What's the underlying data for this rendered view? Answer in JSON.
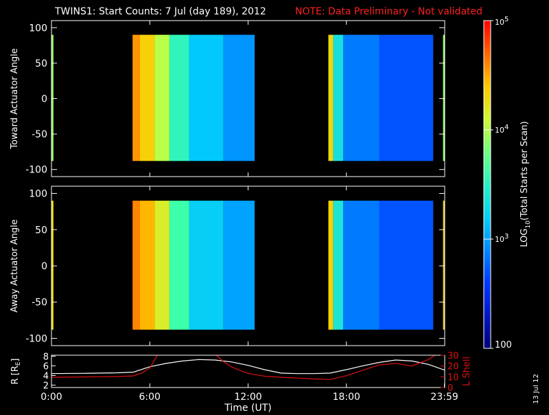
{
  "header": {
    "title": "TWINS1: Start Counts:  7 Jul (day 189), 2012",
    "note": "NOTE: Data Preliminary - Not validated"
  },
  "stamp": "13 Jul 12",
  "colors": {
    "background": "#000000",
    "axes": "#ffffff",
    "note": "#ff2020",
    "orbit_r": "#ffffff",
    "orbit_l": "#e01010"
  },
  "chart_data": [
    {
      "type": "heatmap",
      "title": "",
      "ylabel": "Toward Actuator Angle",
      "ylim": [
        -110,
        110
      ],
      "yticks": [
        100,
        50,
        0,
        -50,
        -100
      ],
      "xlim": [
        0,
        24
      ],
      "color_scale": "log",
      "zlim": [
        100,
        100000
      ],
      "columns": [
        {
          "x0": 0.0,
          "x1": 0.12,
          "log10_counts": 3.9
        },
        {
          "x0": 4.95,
          "x1": 5.4,
          "log10_counts": 4.55
        },
        {
          "x0": 5.4,
          "x1": 6.3,
          "log10_counts": 4.35
        },
        {
          "x0": 6.3,
          "x1": 7.2,
          "log10_counts": 4.0
        },
        {
          "x0": 7.2,
          "x1": 8.4,
          "log10_counts": 3.55
        },
        {
          "x0": 8.4,
          "x1": 10.5,
          "log10_counts": 3.15
        },
        {
          "x0": 10.5,
          "x1": 12.4,
          "log10_counts": 2.95
        },
        {
          "x0": 16.9,
          "x1": 17.2,
          "log10_counts": 4.3
        },
        {
          "x0": 17.2,
          "x1": 17.8,
          "log10_counts": 3.35
        },
        {
          "x0": 17.8,
          "x1": 20.0,
          "log10_counts": 2.85
        },
        {
          "x0": 20.0,
          "x1": 23.3,
          "log10_counts": 2.7
        },
        {
          "x0": 23.9,
          "x1": 24.0,
          "log10_counts": 3.9
        }
      ],
      "angle_range": [
        -88,
        90
      ]
    },
    {
      "type": "heatmap",
      "title": "",
      "ylabel": "Away Actuator Angle",
      "ylim": [
        -110,
        110
      ],
      "yticks": [
        100,
        50,
        0,
        -50,
        -100
      ],
      "xlim": [
        0,
        24
      ],
      "color_scale": "log",
      "zlim": [
        100,
        100000
      ],
      "columns": [
        {
          "x0": 0.0,
          "x1": 0.12,
          "log10_counts": 4.3
        },
        {
          "x0": 4.95,
          "x1": 5.4,
          "log10_counts": 4.6
        },
        {
          "x0": 5.4,
          "x1": 6.3,
          "log10_counts": 4.45
        },
        {
          "x0": 6.3,
          "x1": 7.2,
          "log10_counts": 4.15
        },
        {
          "x0": 7.2,
          "x1": 8.4,
          "log10_counts": 3.65
        },
        {
          "x0": 8.4,
          "x1": 10.5,
          "log10_counts": 3.2
        },
        {
          "x0": 10.5,
          "x1": 12.4,
          "log10_counts": 3.0
        },
        {
          "x0": 16.9,
          "x1": 17.2,
          "log10_counts": 4.35
        },
        {
          "x0": 17.2,
          "x1": 17.8,
          "log10_counts": 3.4
        },
        {
          "x0": 17.8,
          "x1": 20.0,
          "log10_counts": 2.85
        },
        {
          "x0": 20.0,
          "x1": 23.3,
          "log10_counts": 2.7
        },
        {
          "x0": 23.9,
          "x1": 24.0,
          "log10_counts": 4.35
        }
      ],
      "angle_range": [
        -88,
        90
      ]
    },
    {
      "type": "line",
      "title": "",
      "xlabel": "Time (UT)",
      "ylabel": "R [R",
      "ylabel_sub": "E",
      "ylabel_end": "]",
      "xlim": [
        0,
        24
      ],
      "xticks": [
        {
          "v": 0,
          "label": "0:00"
        },
        {
          "v": 6,
          "label": "6:00"
        },
        {
          "v": 12,
          "label": "12:00"
        },
        {
          "v": 18,
          "label": "18:00"
        },
        {
          "v": 23.983,
          "label": "23:59"
        }
      ],
      "ylim": [
        1.5,
        8.2
      ],
      "yticks": [
        2,
        4,
        6,
        8
      ],
      "y2label": "L Shell",
      "y2lim": [
        0,
        30
      ],
      "y2ticks": [
        0,
        10,
        20,
        30
      ],
      "series": [
        {
          "axis": "left",
          "color": "#ffffff",
          "x": [
            0,
            2,
            4,
            5,
            6,
            7,
            8,
            9,
            10,
            11,
            12,
            13,
            14,
            15,
            16,
            17,
            18,
            19,
            20,
            21,
            22,
            23,
            24
          ],
          "y": [
            4.4,
            4.45,
            4.55,
            4.7,
            5.8,
            6.5,
            7.0,
            7.3,
            7.2,
            6.8,
            6.1,
            5.2,
            4.5,
            4.4,
            4.4,
            4.5,
            5.2,
            6.0,
            6.7,
            7.2,
            7.0,
            6.3,
            5.1
          ]
        },
        {
          "axis": "right",
          "color": "#e01010",
          "x": [
            0,
            2,
            4,
            5,
            5.5,
            6,
            6.5,
            10,
            10.5,
            11,
            12,
            13,
            14,
            15,
            16,
            17,
            18,
            19,
            20,
            21,
            22,
            23,
            23.5
          ],
          "y": [
            9.5,
            9.8,
            10.2,
            10.8,
            13.5,
            18,
            31,
            31,
            24,
            19,
            13,
            10.5,
            9.5,
            8.8,
            8.0,
            7.5,
            11,
            16,
            21,
            22.5,
            20,
            26,
            31
          ]
        }
      ]
    }
  ],
  "colorbar": {
    "label_prefix": "LOG",
    "label_sub": "10",
    "label_suffix": "(Total Starts per Scan)",
    "ticks": [
      {
        "base": "10",
        "exp": "5",
        "log": 5
      },
      {
        "base": "10",
        "exp": "4",
        "log": 4
      },
      {
        "base": "10",
        "exp": "3",
        "log": 3
      },
      {
        "base": "100",
        "exp": "",
        "log": 2
      }
    ]
  }
}
